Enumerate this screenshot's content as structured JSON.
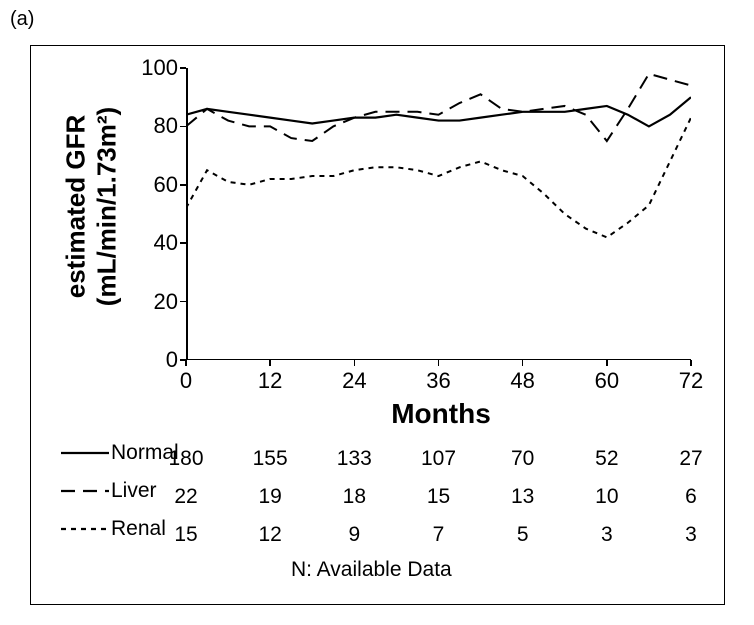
{
  "panel_label": "(a)",
  "background_color": "#ffffff",
  "border_color": "#000000",
  "text_color": "#000000",
  "y_axis": {
    "title_line1": "estimated GFR",
    "title_line2": "(mL/min/1.73m²)",
    "fontsize": 26,
    "min": 0,
    "max": 100,
    "ticks": [
      0,
      20,
      40,
      60,
      80,
      100
    ]
  },
  "x_axis": {
    "title": "Months",
    "fontsize": 28,
    "min": 0,
    "max": 72,
    "ticks": [
      0,
      12,
      24,
      36,
      48,
      60,
      72
    ],
    "tick_fontsize": 22
  },
  "series": [
    {
      "name": "Normal",
      "dash": "solid",
      "stroke_width": 2.2,
      "x": [
        0,
        3,
        6,
        9,
        12,
        15,
        18,
        21,
        24,
        27,
        30,
        33,
        36,
        39,
        42,
        45,
        48,
        51,
        54,
        57,
        60,
        63,
        66,
        69,
        72
      ],
      "y": [
        84,
        86,
        85,
        84,
        83,
        82,
        81,
        82,
        83,
        83,
        84,
        83,
        82,
        82,
        83,
        84,
        85,
        85,
        85,
        86,
        87,
        84,
        80,
        84,
        90
      ]
    },
    {
      "name": "Liver",
      "dash": "long",
      "stroke_width": 2.0,
      "x": [
        0,
        3,
        6,
        9,
        12,
        15,
        18,
        21,
        24,
        27,
        30,
        33,
        36,
        39,
        42,
        45,
        48,
        51,
        54,
        57,
        60,
        63,
        66,
        69,
        72
      ],
      "y": [
        80,
        86,
        82,
        80,
        80,
        76,
        75,
        80,
        83,
        85,
        85,
        85,
        84,
        88,
        91,
        86,
        85,
        86,
        87,
        84,
        75,
        86,
        98,
        96,
        94
      ]
    },
    {
      "name": "Renal",
      "dash": "short",
      "stroke_width": 2.0,
      "x": [
        0,
        3,
        6,
        9,
        12,
        15,
        18,
        21,
        24,
        27,
        30,
        33,
        36,
        39,
        42,
        45,
        48,
        51,
        54,
        57,
        60,
        63,
        66,
        69,
        72
      ],
      "y": [
        52,
        65,
        61,
        60,
        62,
        62,
        63,
        63,
        65,
        66,
        66,
        65,
        63,
        66,
        68,
        65,
        63,
        57,
        50,
        45,
        42,
        47,
        53,
        68,
        83
      ]
    }
  ],
  "table": {
    "caption": "N: Available Data",
    "columns_at": [
      0,
      12,
      24,
      36,
      48,
      60,
      72
    ],
    "rows": [
      {
        "label": "Normal",
        "values": [
          180,
          155,
          133,
          107,
          70,
          52,
          27
        ]
      },
      {
        "label": "Liver",
        "values": [
          22,
          19,
          18,
          15,
          13,
          10,
          6
        ]
      },
      {
        "label": "Renal",
        "values": [
          15,
          12,
          9,
          7,
          5,
          3,
          3
        ]
      }
    ]
  }
}
